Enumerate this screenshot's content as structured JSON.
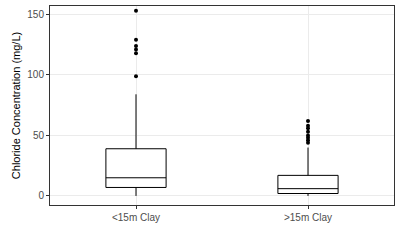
{
  "chart_data": {
    "type": "box",
    "y_label": "Chloride Concentration (mg/L)",
    "categories": [
      "<15m Clay",
      ">15m Clay"
    ],
    "boxes": [
      {
        "lowerfence": 0,
        "q1": 7,
        "median": 15,
        "q3": 39,
        "upperfence": 84,
        "outliers": [
          99,
          118,
          121,
          124,
          129,
          153
        ]
      },
      {
        "lowerfence": 0,
        "q1": 2,
        "median": 6,
        "q3": 17,
        "upperfence": 40,
        "outliers": [
          44,
          46,
          48,
          50,
          53,
          56,
          58,
          62
        ]
      }
    ],
    "color": "#000000",
    "ylim": [
      -7.5,
      157
    ],
    "yticks": [
      0,
      50,
      100,
      150
    ],
    "grid": true
  }
}
